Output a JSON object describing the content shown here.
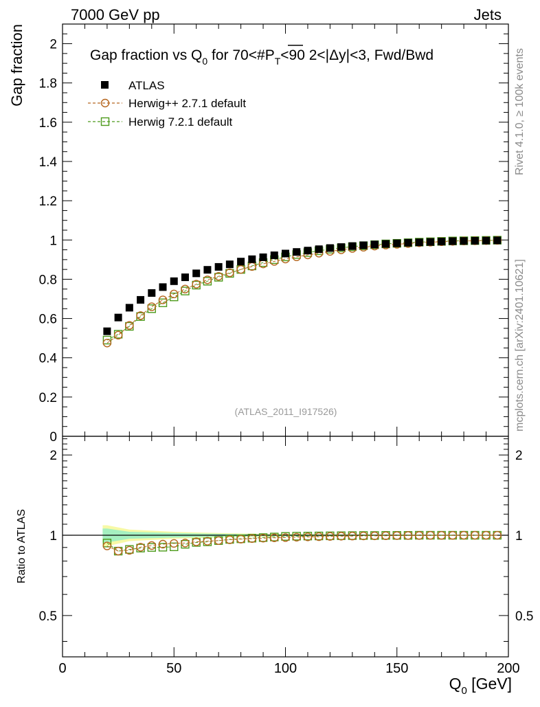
{
  "header": {
    "left": "7000 GeV pp",
    "right": "Jets"
  },
  "side": {
    "rivet": "Rivet 4.1.0, ≥ 100k events",
    "mcplots": "mcplots.cern.ch [arXiv:2401.10621]"
  },
  "chart_data": [
    {
      "type": "scatter",
      "panel": "main",
      "title": "Gap fraction vs Q0 for 70<#PT<90  2<|Δy|<3, Fwd/Bwd",
      "title_parts": {
        "t1": "Gap fraction vs Q",
        "t1_sub": "0",
        "t2": " for 70<#",
        "t2_over": "P",
        "t2_sub": "T",
        "t3": "<90  2<|Δy|<3, Fwd/Bwd"
      },
      "ylabel": "Gap fraction",
      "xlim": [
        0,
        200
      ],
      "ylim": [
        0,
        2.1
      ],
      "yticks": [
        0,
        0.2,
        0.4,
        0.6,
        0.8,
        1,
        1.2,
        1.4,
        1.6,
        1.8,
        2
      ],
      "ytick_labels": [
        "0",
        "0.2",
        "0.4",
        "0.6",
        "0.8",
        "1",
        "1.2",
        "1.4",
        "1.6",
        "1.8",
        "2"
      ],
      "watermark": "(ATLAS_2011_I917526)",
      "legend_position": "top-left",
      "x": [
        20,
        25,
        30,
        35,
        40,
        45,
        50,
        55,
        60,
        65,
        70,
        75,
        80,
        85,
        90,
        95,
        100,
        105,
        110,
        115,
        120,
        125,
        130,
        135,
        140,
        145,
        150,
        155,
        160,
        165,
        170,
        175,
        180,
        185,
        190,
        195
      ],
      "series": [
        {
          "name": "ATLAS",
          "marker": "filled-square",
          "color": "#000000",
          "values": [
            0.535,
            0.605,
            0.655,
            0.695,
            0.73,
            0.76,
            0.79,
            0.81,
            0.83,
            0.848,
            0.863,
            0.876,
            0.89,
            0.902,
            0.912,
            0.922,
            0.931,
            0.939,
            0.946,
            0.953,
            0.959,
            0.964,
            0.969,
            0.973,
            0.977,
            0.98,
            0.983,
            0.986,
            0.988,
            0.99,
            0.992,
            0.994,
            0.995,
            0.996,
            0.997,
            0.998
          ]
        },
        {
          "name": "Herwig++ 2.7.1 default",
          "marker": "open-circle",
          "color": "#b5651d",
          "values": [
            0.475,
            0.515,
            0.565,
            0.615,
            0.66,
            0.695,
            0.725,
            0.75,
            0.775,
            0.797,
            0.815,
            0.833,
            0.85,
            0.865,
            0.878,
            0.891,
            0.903,
            0.914,
            0.924,
            0.933,
            0.942,
            0.95,
            0.957,
            0.963,
            0.969,
            0.974,
            0.978,
            0.982,
            0.986,
            0.989,
            0.991,
            0.993,
            0.995,
            0.996,
            0.997,
            0.998
          ]
        },
        {
          "name": "Herwig 7.2.1 default",
          "marker": "open-square",
          "color": "#4c9a1a",
          "values": [
            0.49,
            0.52,
            0.56,
            0.61,
            0.65,
            0.68,
            0.71,
            0.74,
            0.77,
            0.79,
            0.81,
            0.83,
            0.85,
            0.868,
            0.885,
            0.9,
            0.914,
            0.926,
            0.936,
            0.945,
            0.953,
            0.96,
            0.966,
            0.971,
            0.976,
            0.98,
            0.983,
            0.986,
            0.989,
            0.991,
            0.993,
            0.995,
            0.996,
            0.997,
            0.998,
            0.999
          ]
        }
      ]
    },
    {
      "type": "scatter",
      "panel": "ratio",
      "ylabel": "Ratio to ATLAS",
      "xlabel": "Q0 [GeV]",
      "xlabel_parts": {
        "main": "Q",
        "sub": "0",
        "rest": " [GeV]"
      },
      "xlim": [
        0,
        200
      ],
      "ylim": [
        0.35,
        2.35
      ],
      "yscale": "log",
      "yticks": [
        0.5,
        1,
        2
      ],
      "ytick_labels": [
        "0.5",
        "1",
        "2"
      ],
      "xticks": [
        0,
        50,
        100,
        150,
        200
      ],
      "xtick_labels": [
        "0",
        "50",
        "100",
        "150",
        "200"
      ],
      "reference_line": 1,
      "band": {
        "x": [
          18,
          20,
          25,
          30,
          40,
          50,
          60,
          70,
          80,
          90,
          100,
          120,
          140,
          160,
          180,
          197
        ],
        "outer_half_width": [
          0.09,
          0.09,
          0.07,
          0.05,
          0.04,
          0.03,
          0.025,
          0.02,
          0.016,
          0.013,
          0.011,
          0.008,
          0.006,
          0.005,
          0.004,
          0.004
        ],
        "inner_half_width": [
          0.06,
          0.06,
          0.045,
          0.03,
          0.025,
          0.02,
          0.016,
          0.013,
          0.01,
          0.008,
          0.007,
          0.005,
          0.004,
          0.003,
          0.003,
          0.003
        ],
        "outer_color": "#f7f9a6",
        "inner_color": "#a5f0c0"
      },
      "x": [
        20,
        25,
        30,
        35,
        40,
        45,
        50,
        55,
        60,
        65,
        70,
        75,
        80,
        85,
        90,
        95,
        100,
        105,
        110,
        115,
        120,
        125,
        130,
        135,
        140,
        145,
        150,
        155,
        160,
        165,
        170,
        175,
        180,
        185,
        190,
        195
      ],
      "series": [
        {
          "name": "Herwig++ 2.7.1 default",
          "marker": "open-circle",
          "color": "#b5651d",
          "values": [
            0.912,
            0.872,
            0.878,
            0.902,
            0.915,
            0.926,
            0.932,
            0.935,
            0.945,
            0.95,
            0.955,
            0.962,
            0.967,
            0.972,
            0.975,
            0.978,
            0.98,
            0.983,
            0.986,
            0.988,
            0.99,
            0.992,
            0.993,
            0.994,
            0.995,
            0.996,
            0.997,
            0.998,
            0.998,
            0.999,
            0.999,
            0.999,
            1.0,
            1.0,
            1.0,
            1.0
          ]
        },
        {
          "name": "Herwig 7.2.1 default",
          "marker": "open-square",
          "color": "#4c9a1a",
          "values": [
            0.935,
            0.872,
            0.885,
            0.895,
            0.9,
            0.902,
            0.905,
            0.925,
            0.94,
            0.945,
            0.955,
            0.965,
            0.97,
            0.975,
            0.98,
            0.985,
            0.99,
            0.992,
            0.993,
            0.994,
            0.995,
            0.996,
            0.997,
            0.998,
            0.998,
            0.999,
            0.999,
            0.999,
            1.0,
            1.0,
            1.0,
            1.0,
            1.0,
            1.0,
            1.0,
            1.0
          ]
        }
      ]
    }
  ]
}
